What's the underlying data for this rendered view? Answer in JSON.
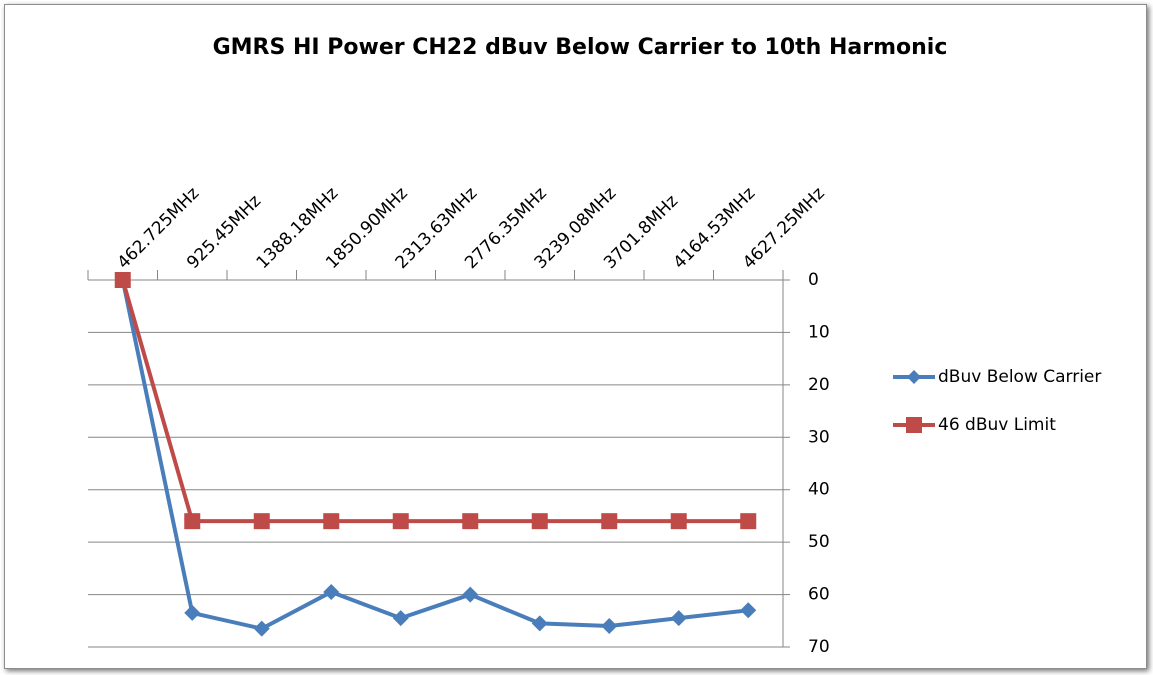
{
  "chart_data": {
    "type": "line",
    "title": "GMRS HI Power CH22 dBuv Below Carrier to 10th Harmonic",
    "categories": [
      "462.725MHz",
      "925.45MHz",
      "1388.18MHz",
      "1850.90MHz",
      "2313.63MHz",
      "2776.35MHz",
      "3239.08MHz",
      "3701.8MHz",
      "4164.53MHz",
      "4627.25MHz"
    ],
    "series": [
      {
        "name": "dBuv Below Carrier",
        "color": "#4a7ebb",
        "marker": "diamond",
        "values": [
          0,
          63.5,
          66.5,
          59.5,
          64.5,
          60,
          65.5,
          66,
          64.5,
          63
        ]
      },
      {
        "name": "46 dBuv Limit",
        "color": "#be4b48",
        "marker": "square",
        "values": [
          0,
          46,
          46,
          46,
          46,
          46,
          46,
          46,
          46,
          46
        ]
      }
    ],
    "ylim": [
      0,
      70
    ],
    "yticks": [
      0,
      10,
      20,
      30,
      40,
      50,
      60,
      70
    ],
    "y_reversed": true,
    "y_axis_side": "right",
    "x_axis_side": "top",
    "grid": true,
    "legend": "right"
  }
}
